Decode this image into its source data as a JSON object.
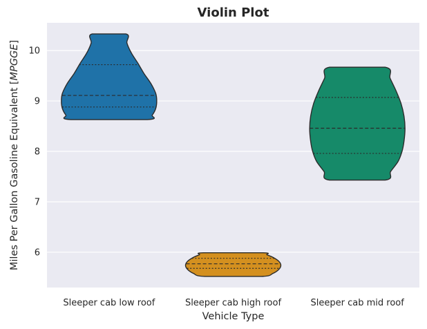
{
  "chart_data": {
    "type": "violin",
    "title": "Violin Plot",
    "xlabel": "Vehicle Type",
    "ylabel": "Miles Per Gallon Gasoline Equivalent [MPGGE]",
    "ylabel_unit_italic": "MPGGE",
    "ylim": [
      5.3,
      10.55
    ],
    "yticks": [
      6,
      7,
      8,
      9,
      10
    ],
    "grid": true,
    "categories": [
      "Sleeper cab low roof",
      "Sleeper cab high roof",
      "Sleeper cab mid roof"
    ],
    "violins": [
      {
        "category": "Sleeper cab low roof",
        "color": "#1f72a8",
        "min": 8.63,
        "max": 10.33,
        "q1": 8.88,
        "median": 9.11,
        "q3": 9.72,
        "profile": [
          [
            8.63,
            0.77
          ],
          [
            8.72,
            0.87
          ],
          [
            8.85,
            0.94
          ],
          [
            9.0,
            0.96
          ],
          [
            9.15,
            0.94
          ],
          [
            9.35,
            0.84
          ],
          [
            9.55,
            0.7
          ],
          [
            9.75,
            0.58
          ],
          [
            9.95,
            0.45
          ],
          [
            10.15,
            0.36
          ],
          [
            10.33,
            0.34
          ]
        ]
      },
      {
        "category": "Sleeper cab high roof",
        "color": "#d4901f",
        "min": 5.52,
        "max": 5.99,
        "q1": 5.68,
        "median": 5.77,
        "q3": 5.88,
        "profile": [
          [
            5.52,
            0.57
          ],
          [
            5.58,
            0.8
          ],
          [
            5.66,
            0.92
          ],
          [
            5.74,
            0.96
          ],
          [
            5.82,
            0.92
          ],
          [
            5.9,
            0.8
          ],
          [
            5.95,
            0.68
          ],
          [
            5.99,
            0.6
          ]
        ]
      },
      {
        "category": "Sleeper cab mid roof",
        "color": "#168a69",
        "min": 7.43,
        "max": 9.67,
        "q1": 7.96,
        "median": 8.46,
        "q3": 9.07,
        "profile": [
          [
            7.43,
            0.56
          ],
          [
            7.6,
            0.67
          ],
          [
            7.8,
            0.82
          ],
          [
            8.0,
            0.9
          ],
          [
            8.2,
            0.94
          ],
          [
            8.45,
            0.96
          ],
          [
            8.7,
            0.94
          ],
          [
            8.95,
            0.88
          ],
          [
            9.2,
            0.78
          ],
          [
            9.45,
            0.66
          ],
          [
            9.67,
            0.56
          ]
        ]
      }
    ]
  }
}
